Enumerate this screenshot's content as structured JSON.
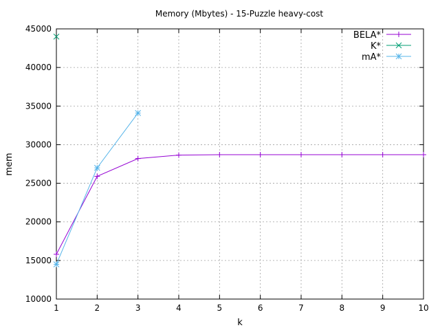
{
  "chart_data": {
    "type": "line",
    "title": "Memory (Mbytes) - 15-Puzzle heavy-cost",
    "xlabel": "k",
    "ylabel": "mem",
    "xlim": [
      1,
      10
    ],
    "ylim": [
      10000,
      45000
    ],
    "xticks": [
      1,
      2,
      3,
      4,
      5,
      6,
      7,
      8,
      9,
      10
    ],
    "yticks": [
      10000,
      15000,
      20000,
      25000,
      30000,
      35000,
      40000,
      45000
    ],
    "grid": true,
    "legend_position": "top-right",
    "series": [
      {
        "name": "BELA*",
        "color": "#9400d3",
        "marker": "plus",
        "x": [
          1,
          2,
          3,
          4,
          5,
          6,
          7,
          8,
          9,
          10
        ],
        "y": [
          15800,
          25900,
          28200,
          28650,
          28700,
          28700,
          28700,
          28700,
          28700,
          28700
        ]
      },
      {
        "name": "K*",
        "color": "#009e73",
        "marker": "cross",
        "x": [
          1
        ],
        "y": [
          44000
        ]
      },
      {
        "name": "mA*",
        "color": "#56b4e9",
        "marker": "star",
        "x": [
          1,
          2,
          3
        ],
        "y": [
          14500,
          27000,
          34100
        ]
      }
    ]
  }
}
